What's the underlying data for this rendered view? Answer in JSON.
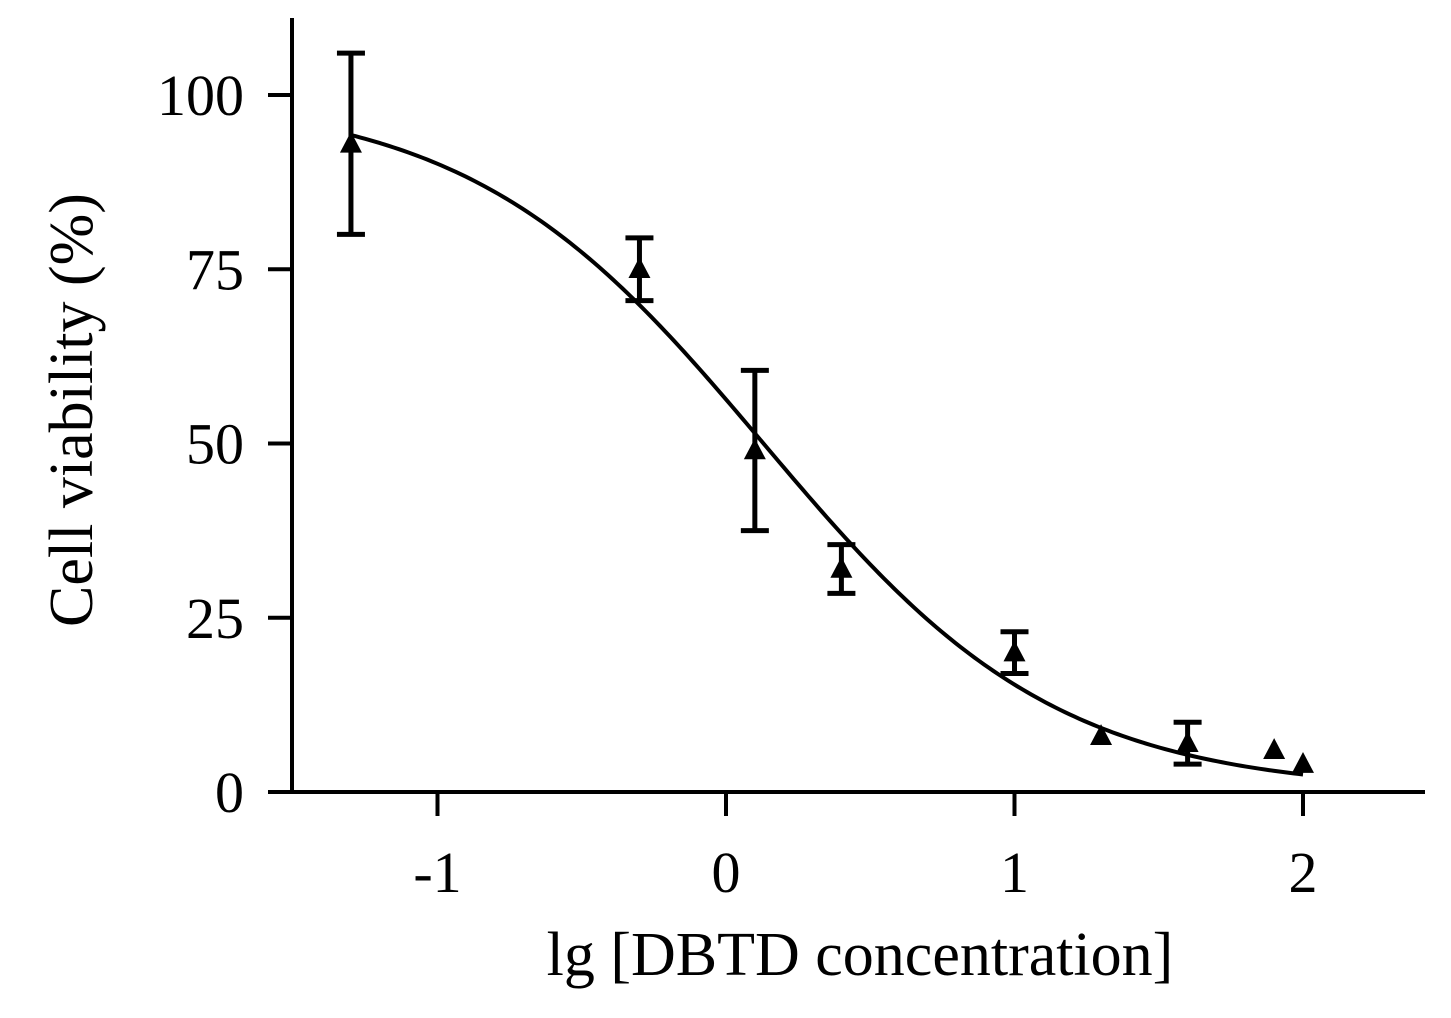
{
  "chart_data": {
    "type": "scatter",
    "title": "",
    "xlabel": "lg [DBTD concentration]",
    "ylabel": "Cell viability (%)",
    "xlim": [
      -1.5,
      2.4
    ],
    "ylim": [
      0,
      110
    ],
    "x_ticks": [
      -1,
      0,
      1,
      2
    ],
    "y_ticks": [
      0,
      25,
      50,
      75,
      100
    ],
    "grid": false,
    "legend": "none",
    "marker": "triangle",
    "colors": {
      "axis": "#000000",
      "marker": "#000000",
      "curve": "#000000"
    },
    "series": [
      {
        "points": [
          {
            "x": -1.3,
            "y": 93,
            "err": 13
          },
          {
            "x": -0.3,
            "y": 75,
            "err": 4.5
          },
          {
            "x": 0.1,
            "y": 49,
            "err": 11.5
          },
          {
            "x": 0.4,
            "y": 32,
            "err": 3.5
          },
          {
            "x": 1.0,
            "y": 20,
            "err": 3
          },
          {
            "x": 1.3,
            "y": 8,
            "err": 0
          },
          {
            "x": 1.6,
            "y": 7,
            "err": 3
          },
          {
            "x": 1.9,
            "y": 6,
            "err": 0
          },
          {
            "x": 2.0,
            "y": 4,
            "err": 0
          }
        ]
      }
    ],
    "fit_curve": {
      "type": "sigmoid",
      "top": 100,
      "bottom": 0,
      "log_ic50": 0.13,
      "hill_slope": -0.85,
      "x_start": -1.3,
      "x_end": 2.0
    }
  }
}
